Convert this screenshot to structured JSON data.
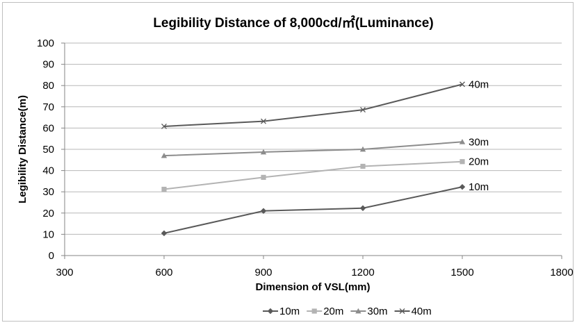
{
  "chart_data": {
    "type": "line",
    "title": "Legibility Distance of 8,000cd/㎡(Luminance)",
    "xlabel": "Dimension of VSL(mm)",
    "ylabel": "Legibility Distance(m)",
    "xlim": [
      300,
      1800
    ],
    "ylim": [
      0,
      100
    ],
    "xticks": [
      "300",
      "600",
      "900",
      "1200",
      "1500",
      "1800"
    ],
    "yticks": [
      "0",
      "10",
      "20",
      "30",
      "40",
      "50",
      "60",
      "70",
      "80",
      "90",
      "100"
    ],
    "grid": true,
    "legend": "bottom",
    "x": [
      600,
      900,
      1200,
      1500
    ],
    "series": [
      {
        "name": "10m",
        "values": [
          10.5,
          21,
          22.3,
          32.3
        ],
        "color": "#595959",
        "marker": "diamond",
        "end_label": "10m"
      },
      {
        "name": "20m",
        "values": [
          31.2,
          36.8,
          42,
          44.2
        ],
        "color": "#b3b3b3",
        "marker": "square",
        "end_label": "20m"
      },
      {
        "name": "30m",
        "values": [
          47,
          48.7,
          50,
          53.5
        ],
        "color": "#8c8c8c",
        "marker": "triangle",
        "end_label": "30m"
      },
      {
        "name": "40m",
        "values": [
          60.8,
          63.2,
          68.6,
          80.6
        ],
        "color": "#595959",
        "marker": "x",
        "end_label": "40m"
      }
    ]
  }
}
